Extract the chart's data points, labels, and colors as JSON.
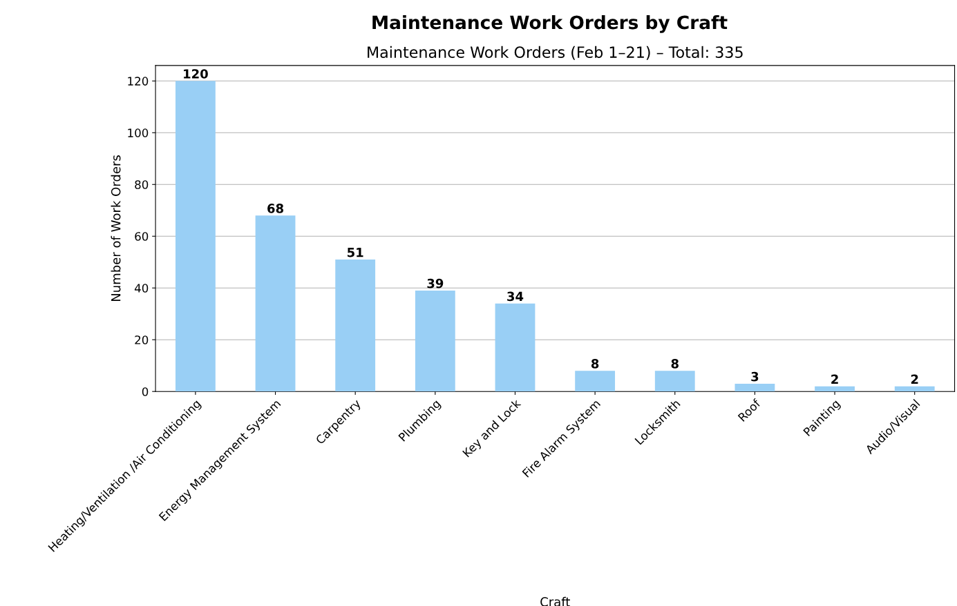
{
  "chart_data": {
    "type": "bar",
    "title": "Maintenance Work Orders by Craft",
    "subtitle": "Maintenance Work Orders (Feb 1–21) – Total: 335",
    "xlabel": "Craft",
    "ylabel": "Number of Work Orders",
    "categories": [
      "Heating/Ventilation /Air Conditioning",
      "Energy Management System",
      "Carpentry",
      "Plumbing",
      "Key and Lock",
      "Fire Alarm System",
      "Locksmith",
      "Roof",
      "Painting",
      "Audio/Visual"
    ],
    "values": [
      120,
      68,
      51,
      39,
      34,
      8,
      8,
      3,
      2,
      2
    ],
    "color": "#99cff5",
    "ylim": [
      0,
      126
    ],
    "yticks": [
      0,
      20,
      40,
      60,
      80,
      100,
      120
    ],
    "grid": "y",
    "data_labels": true,
    "legend": false
  }
}
